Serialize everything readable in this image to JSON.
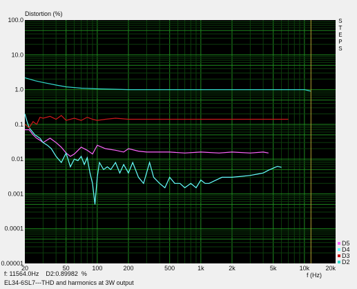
{
  "chart_data": {
    "type": "line",
    "title": "Distortion (%)",
    "xlabel": "f (Hz)",
    "x_scale": "log",
    "y_scale": "log",
    "xlim": [
      20,
      20000
    ],
    "ylim": [
      1e-05,
      100
    ],
    "x_ticks": [
      {
        "v": 20,
        "label": "20"
      },
      {
        "v": 50,
        "label": "50"
      },
      {
        "v": 100,
        "label": "100"
      },
      {
        "v": 200,
        "label": "200"
      },
      {
        "v": 500,
        "label": "500"
      },
      {
        "v": 1000,
        "label": "1k"
      },
      {
        "v": 2000,
        "label": "2k"
      },
      {
        "v": 5000,
        "label": "5k"
      },
      {
        "v": 10000,
        "label": "10k"
      },
      {
        "v": 20000,
        "label": "20k"
      }
    ],
    "y_ticks": [
      {
        "v": 100,
        "label": "100.0"
      },
      {
        "v": 10,
        "label": "10.0"
      },
      {
        "v": 1,
        "label": "1.0"
      },
      {
        "v": 0.1,
        "label": "0.1"
      },
      {
        "v": 0.01,
        "label": "0.01"
      },
      {
        "v": 0.001,
        "label": "0.001"
      },
      {
        "v": 0.0001,
        "label": "0.0001"
      },
      {
        "v": 1e-05,
        "label": "0.00001"
      }
    ],
    "cursor_x": 11564,
    "background": "#000000",
    "grid": true,
    "legend_position": "bottom-right",
    "series": [
      {
        "name": "D5",
        "color": "#ff66ff",
        "x": [
          20,
          22,
          24,
          26,
          28,
          30,
          35,
          40,
          45,
          50,
          55,
          60,
          70,
          80,
          90,
          100,
          120,
          150,
          180,
          200,
          250,
          300,
          400,
          500,
          700,
          1000,
          1500,
          2000,
          3000,
          4000,
          4500
        ],
        "y": [
          0.07,
          0.07,
          0.05,
          0.04,
          0.035,
          0.03,
          0.04,
          0.03,
          0.022,
          0.015,
          0.012,
          0.014,
          0.022,
          0.018,
          0.014,
          0.025,
          0.02,
          0.018,
          0.016,
          0.02,
          0.017,
          0.016,
          0.016,
          0.016,
          0.015,
          0.016,
          0.015,
          0.016,
          0.015,
          0.016,
          0.015
        ]
      },
      {
        "name": "D4",
        "color": "#66ffff",
        "x": [
          20,
          21,
          22,
          25,
          28,
          30,
          33,
          36,
          40,
          45,
          50,
          55,
          60,
          65,
          70,
          75,
          80,
          85,
          90,
          95,
          100,
          105,
          115,
          125,
          135,
          150,
          165,
          180,
          200,
          220,
          250,
          280,
          320,
          350,
          400,
          450,
          500,
          560,
          630,
          700,
          800,
          900,
          1000,
          1100,
          1200,
          1400,
          1600,
          2000,
          2500,
          3000,
          3500,
          4000,
          4500,
          5000,
          5500,
          6000
        ],
        "y": [
          0.2,
          0.12,
          0.08,
          0.05,
          0.04,
          0.03,
          0.025,
          0.02,
          0.012,
          0.008,
          0.015,
          0.006,
          0.01,
          0.009,
          0.012,
          0.007,
          0.011,
          0.004,
          0.002,
          0.0005,
          0.003,
          0.008,
          0.005,
          0.006,
          0.005,
          0.008,
          0.004,
          0.007,
          0.004,
          0.008,
          0.003,
          0.002,
          0.008,
          0.003,
          0.002,
          0.0015,
          0.003,
          0.002,
          0.002,
          0.0015,
          0.002,
          0.0015,
          0.0025,
          0.002,
          0.002,
          0.0025,
          0.003,
          0.003,
          0.0032,
          0.0034,
          0.0037,
          0.004,
          0.0048,
          0.0055,
          0.0062,
          0.0058
        ]
      },
      {
        "name": "D3",
        "color": "#cc1a1a",
        "x": [
          20,
          22,
          24,
          26,
          28,
          30,
          35,
          40,
          45,
          50,
          60,
          70,
          80,
          90,
          100,
          120,
          150,
          200,
          300,
          500,
          700,
          1000,
          1500,
          2000,
          3000,
          5000,
          7000
        ],
        "y": [
          0.1,
          0.08,
          0.12,
          0.1,
          0.16,
          0.15,
          0.17,
          0.14,
          0.18,
          0.13,
          0.15,
          0.13,
          0.16,
          0.14,
          0.13,
          0.14,
          0.15,
          0.14,
          0.14,
          0.14,
          0.14,
          0.14,
          0.14,
          0.14,
          0.14,
          0.14,
          0.14
        ]
      },
      {
        "name": "D2",
        "color": "#33d9cc",
        "x": [
          20,
          25,
          30,
          40,
          50,
          70,
          100,
          150,
          200,
          300,
          500,
          700,
          1000,
          2000,
          5000,
          10000,
          11564
        ],
        "y": [
          2.2,
          1.8,
          1.6,
          1.35,
          1.2,
          1.1,
          1.05,
          1.02,
          1.0,
          1.0,
          1.0,
          1.0,
          1.0,
          1.0,
          1.0,
          1.0,
          0.89982
        ]
      }
    ]
  },
  "status_bar": {
    "readout": "f: 11564.0Hz    D2:0.89982  %",
    "caption": "EL34-6SL7---THD and harmonics at 3W output"
  },
  "steps_label": [
    "S",
    "T",
    "E",
    "P",
    "S"
  ],
  "colors": {
    "plot_bg": "#000000",
    "grid_major": "#1e8a1e",
    "grid_minor": "#0c3d0c",
    "cursor": "#b5a032",
    "window_bg": "#f0f0f0"
  }
}
